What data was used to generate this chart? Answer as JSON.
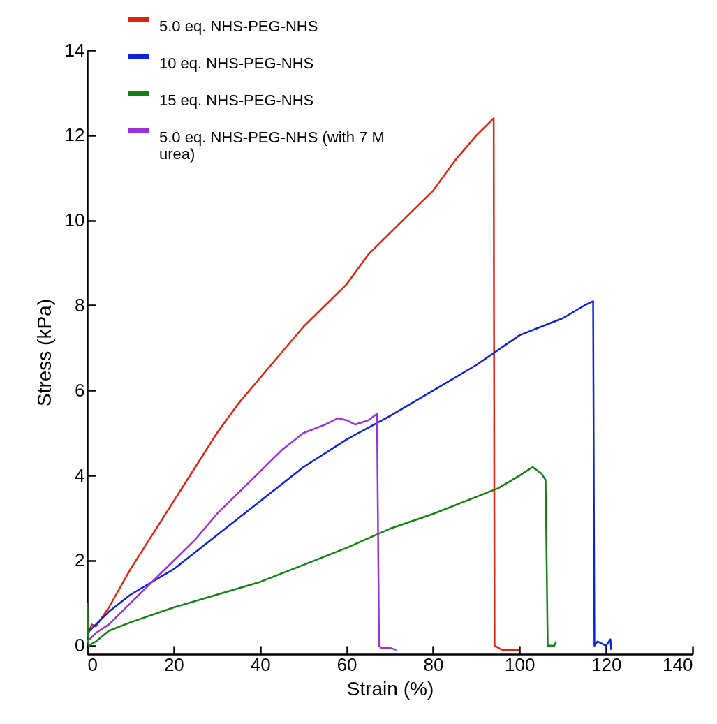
{
  "chart_data": {
    "type": "line",
    "xlabel": "Strain (%)",
    "ylabel": "Stress (kPa)",
    "xlim": [
      0,
      140
    ],
    "ylim": [
      -0.2,
      14
    ],
    "xticks": [
      0,
      20,
      40,
      60,
      80,
      100,
      120,
      140
    ],
    "yticks": [
      0,
      2,
      4,
      6,
      8,
      10,
      12,
      14
    ],
    "grid": false,
    "legend": "top left",
    "line_style": "solid",
    "marker": "none",
    "series": [
      {
        "name": "5.0 eq. NHS-PEG-NHS",
        "color": "#e0230f",
        "x": [
          0,
          1,
          2,
          5,
          10,
          15,
          20,
          25,
          30,
          35,
          40,
          45,
          50,
          55,
          60,
          65,
          70,
          75,
          80,
          85,
          90,
          93,
          94,
          94.2,
          96,
          100
        ],
        "values": [
          0.2,
          0.5,
          0.45,
          0.9,
          1.8,
          2.6,
          3.4,
          4.2,
          5.0,
          5.7,
          6.3,
          6.9,
          7.5,
          8.0,
          8.5,
          9.2,
          9.7,
          10.2,
          10.7,
          11.4,
          12.0,
          12.3,
          12.4,
          0,
          -0.1,
          -0.1
        ]
      },
      {
        "name": "10 eq. NHS-PEG-NHS",
        "color": "#0a22d8",
        "x": [
          0,
          2,
          5,
          10,
          20,
          30,
          40,
          50,
          60,
          70,
          80,
          90,
          100,
          110,
          115,
          117,
          117.3,
          118,
          120,
          121,
          121.2
        ],
        "values": [
          0.3,
          0.5,
          0.8,
          1.2,
          1.8,
          2.6,
          3.4,
          4.2,
          4.85,
          5.4,
          6.0,
          6.6,
          7.3,
          7.7,
          8.0,
          8.1,
          0,
          0.1,
          0,
          0.15,
          -0.1
        ]
      },
      {
        "name": "15 eq. NHS-PEG-NHS",
        "color": "#138013",
        "x": [
          0,
          0.3,
          2,
          5,
          10,
          20,
          30,
          40,
          50,
          60,
          70,
          80,
          90,
          95,
          100,
          103,
          105,
          106,
          106.5,
          108,
          108.5
        ],
        "values": [
          1.0,
          0,
          0.1,
          0.35,
          0.55,
          0.9,
          1.2,
          1.5,
          1.9,
          2.3,
          2.75,
          3.1,
          3.5,
          3.7,
          4.0,
          4.2,
          4.05,
          3.9,
          0,
          0,
          0.1
        ]
      },
      {
        "name": "5.0 eq. NHS-PEG-NHS (with 7 M urea)",
        "color": "#9b30d9",
        "x": [
          0,
          2,
          5,
          10,
          15,
          20,
          25,
          30,
          35,
          40,
          45,
          50,
          55,
          58,
          60,
          62,
          65,
          67,
          67.5,
          68,
          70,
          71.5
        ],
        "values": [
          0.1,
          0.3,
          0.5,
          1.0,
          1.5,
          2.0,
          2.5,
          3.1,
          3.6,
          4.1,
          4.6,
          5.0,
          5.2,
          5.35,
          5.3,
          5.2,
          5.3,
          5.45,
          0,
          -0.05,
          -0.05,
          -0.1
        ]
      }
    ]
  }
}
